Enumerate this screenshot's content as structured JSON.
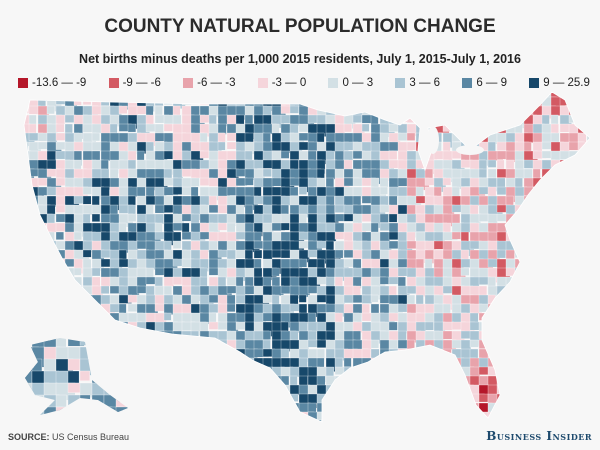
{
  "title": "COUNTY NATURAL POPULATION CHANGE",
  "subtitle": "Net births minus deaths per 1,000 2015 residents, July 1, 2015-July 1, 2016",
  "legend": [
    {
      "label": "-13.6 — -9",
      "color": "#b5172a"
    },
    {
      "label": "-9 — -6",
      "color": "#d35a63"
    },
    {
      "label": "-6 — -3",
      "color": "#e8a3ab"
    },
    {
      "label": "-3 — 0",
      "color": "#f5d5db"
    },
    {
      "label": "0 — 3",
      "color": "#d3e0e5"
    },
    {
      "label": "3 — 6",
      "color": "#a9c4d3"
    },
    {
      "label": "6 — 9",
      "color": "#5a87a3"
    },
    {
      "label": "9 — 25.9",
      "color": "#17486a"
    }
  ],
  "footer": {
    "source_label": "SOURCE:",
    "source_text": " US Census Bureau",
    "brand": "Business Insider"
  }
}
